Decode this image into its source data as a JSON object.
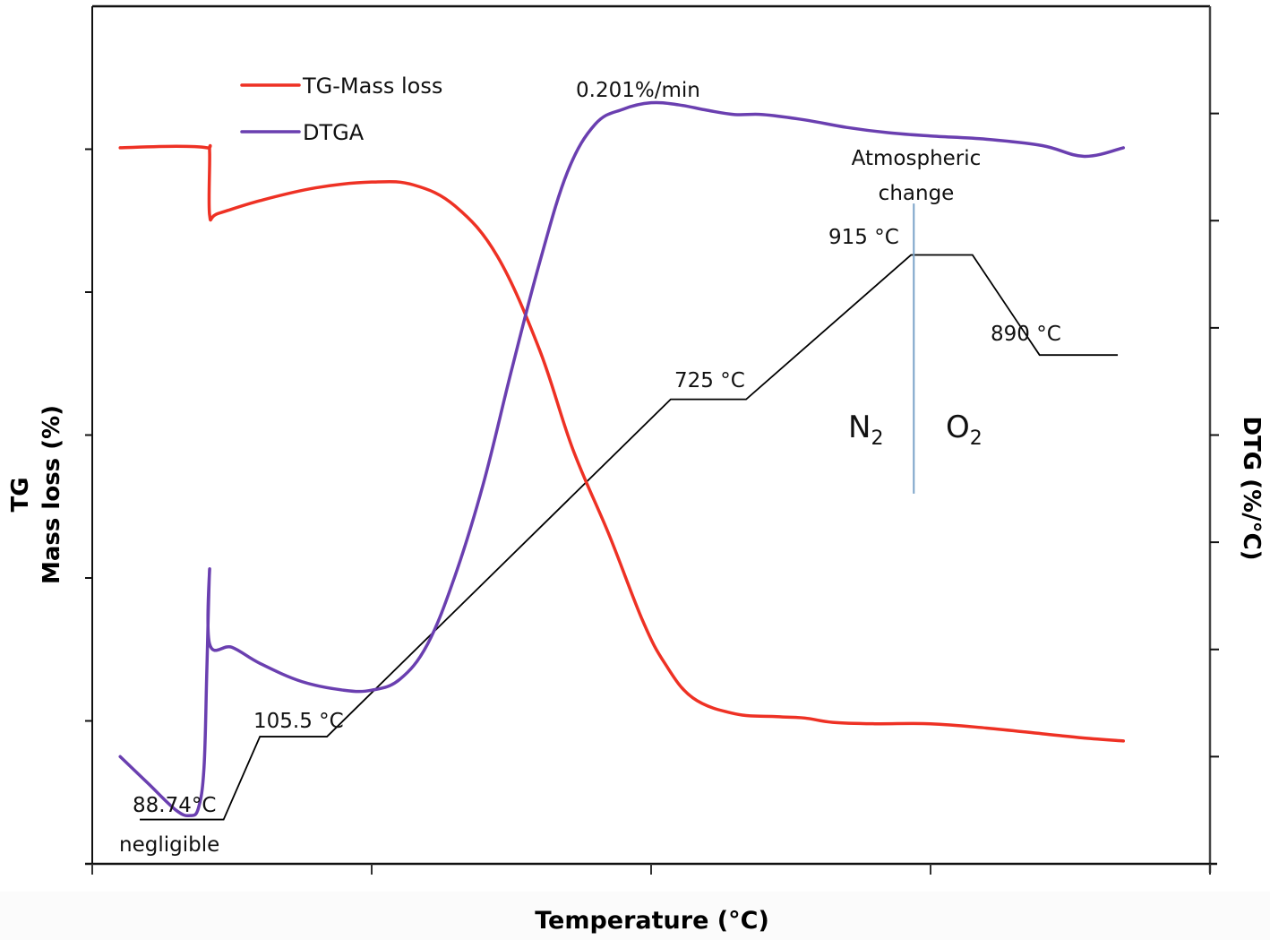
{
  "chart_data": {
    "type": "line",
    "title": "",
    "xlabel": "Temperature (°C)",
    "ylabel_left_line1": "TG",
    "ylabel_left_line2": "Mass loss (%)",
    "ylabel_right": "DTG (%/°C)",
    "x_ticks": 5,
    "y_left_ticks": 6,
    "y_right_ticks": 9,
    "xlim": [
      0,
      4
    ],
    "ylim_left": [
      0,
      6
    ],
    "ylim_right": [
      0,
      8
    ],
    "grid": false,
    "legend_position": "top-left",
    "legend": [
      {
        "name": "TG-Mass loss",
        "color": "#ee3124"
      },
      {
        "name": "DTGA",
        "color": "#6a3fb0"
      }
    ],
    "series": [
      {
        "name": "TG-Mass loss",
        "axis": "left",
        "color": "#ee3124",
        "points": [
          [
            0.1,
            5.01
          ],
          [
            0.3,
            5.02
          ],
          [
            0.41,
            5.01
          ],
          [
            0.42,
            4.98
          ],
          [
            0.42,
            4.54
          ],
          [
            0.45,
            4.55
          ],
          [
            0.6,
            4.64
          ],
          [
            0.8,
            4.73
          ],
          [
            1.0,
            4.77
          ],
          [
            1.15,
            4.75
          ],
          [
            1.3,
            4.6
          ],
          [
            1.45,
            4.25
          ],
          [
            1.6,
            3.6
          ],
          [
            1.72,
            2.9
          ],
          [
            1.85,
            2.3
          ],
          [
            1.97,
            1.7
          ],
          [
            2.05,
            1.4
          ],
          [
            2.15,
            1.16
          ],
          [
            2.3,
            1.05
          ],
          [
            2.45,
            1.03
          ],
          [
            2.55,
            1.02
          ],
          [
            2.65,
            0.99
          ],
          [
            2.8,
            0.98
          ],
          [
            3.0,
            0.98
          ],
          [
            3.2,
            0.95
          ],
          [
            3.4,
            0.91
          ],
          [
            3.55,
            0.88
          ],
          [
            3.69,
            0.86
          ]
        ]
      },
      {
        "name": "DTGA",
        "axis": "right",
        "color": "#6a3fb0",
        "points": [
          [
            0.1,
            1.0
          ],
          [
            0.2,
            0.75
          ],
          [
            0.3,
            0.5
          ],
          [
            0.35,
            0.45
          ],
          [
            0.38,
            0.52
          ],
          [
            0.4,
            0.9
          ],
          [
            0.41,
            1.8
          ],
          [
            0.42,
            2.75
          ],
          [
            0.42,
            2.05
          ],
          [
            0.5,
            2.02
          ],
          [
            0.6,
            1.87
          ],
          [
            0.75,
            1.7
          ],
          [
            0.9,
            1.62
          ],
          [
            1.0,
            1.62
          ],
          [
            1.1,
            1.72
          ],
          [
            1.2,
            2.05
          ],
          [
            1.3,
            2.7
          ],
          [
            1.4,
            3.55
          ],
          [
            1.5,
            4.6
          ],
          [
            1.6,
            5.6
          ],
          [
            1.7,
            6.45
          ],
          [
            1.8,
            6.9
          ],
          [
            1.9,
            7.04
          ],
          [
            2.0,
            7.1
          ],
          [
            2.1,
            7.08
          ],
          [
            2.2,
            7.03
          ],
          [
            2.3,
            6.99
          ],
          [
            2.4,
            6.99
          ],
          [
            2.55,
            6.94
          ],
          [
            2.7,
            6.87
          ],
          [
            2.85,
            6.82
          ],
          [
            3.0,
            6.79
          ],
          [
            3.2,
            6.76
          ],
          [
            3.4,
            6.7
          ],
          [
            3.55,
            6.6
          ],
          [
            3.69,
            6.68
          ]
        ]
      }
    ],
    "temperature_program": {
      "axis": "left",
      "color": "#000000",
      "points": [
        [
          0.17,
          0.31
        ],
        [
          0.47,
          0.31
        ],
        [
          0.6,
          0.89
        ],
        [
          0.84,
          0.89
        ],
        [
          2.07,
          3.25
        ],
        [
          2.34,
          3.25
        ],
        [
          2.93,
          4.26
        ],
        [
          3.15,
          4.26
        ],
        [
          3.39,
          3.56
        ],
        [
          3.67,
          3.56
        ]
      ]
    },
    "annotations": [
      {
        "text": "0.201%/min"
      },
      {
        "text": "Atmospheric"
      },
      {
        "text": "change"
      },
      {
        "text": "915 °C"
      },
      {
        "text": "890 °C"
      },
      {
        "text": "725 °C"
      },
      {
        "text": "105.5 °C"
      },
      {
        "text": "88.74°C"
      },
      {
        "text": "negligible"
      }
    ],
    "atmosphere": {
      "left_gas": "N",
      "left_sub": "2",
      "right_gas": "O",
      "right_sub": "2",
      "divider_color": "#7ba3c8",
      "divider_x": 2.94,
      "divider_range_left_units": [
        2.59,
        4.62
      ]
    }
  }
}
